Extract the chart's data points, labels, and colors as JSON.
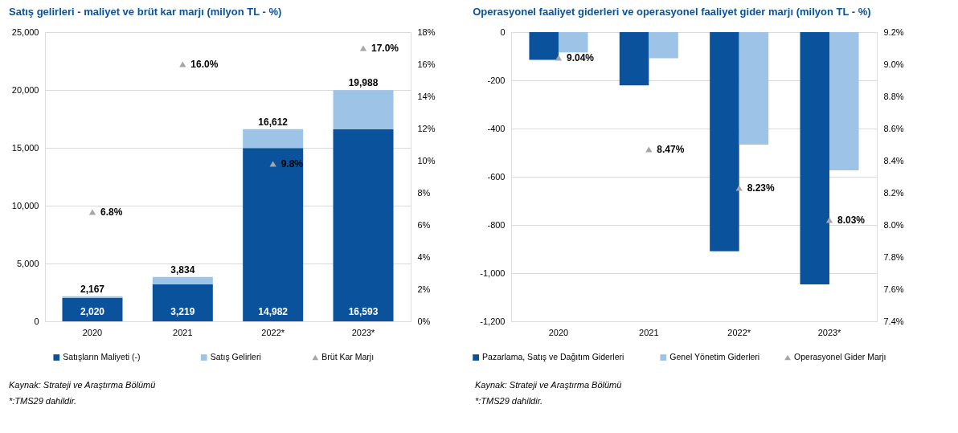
{
  "chart_data": [
    {
      "type": "bar",
      "stacked": true,
      "title": "Satış gelirleri - maliyet ve brüt kar marjı (milyon TL - %)",
      "categories": [
        "2020",
        "2021",
        "2022*",
        "2023*"
      ],
      "series": [
        {
          "name": "Satışların Maliyeti (-)",
          "color": "#0a529c",
          "values": [
            2020,
            3219,
            14982,
            16593
          ],
          "value_labels": [
            "2,020",
            "3,219",
            "14,982",
            "16,593"
          ]
        },
        {
          "name": "Satış Gelirleri",
          "color": "#9dc3e6",
          "values": [
            147,
            615,
            1630,
            3395
          ]
        },
        {
          "name": "Brüt Kar Marjı",
          "type": "scatter",
          "axis": "y2",
          "color": "#a6a6a6",
          "values": [
            6.8,
            16.0,
            9.8,
            17.0
          ],
          "value_labels": [
            "6.8%",
            "16.0%",
            "9.8%",
            "17.0%"
          ]
        }
      ],
      "totals": [
        "2,167",
        "3,834",
        "16,612",
        "19,988"
      ],
      "ylim": [
        0,
        25000
      ],
      "yticks": [
        0,
        {
          "value": 5000,
          "label": "5,000"
        },
        {
          "value": 10000,
          "label": "10,000"
        },
        {
          "value": 15000,
          "label": "15,000"
        },
        {
          "value": 20000,
          "label": "20,000"
        },
        {
          "value": 25000,
          "label": "25,000"
        }
      ],
      "y2lim": [
        0,
        18
      ],
      "y2ticks": [
        {
          "value": 0,
          "label": "0%"
        },
        {
          "value": 2,
          "label": "2%"
        },
        {
          "value": 4,
          "label": "4%"
        },
        {
          "value": 6,
          "label": "6%"
        },
        {
          "value": 8,
          "label": "8%"
        },
        {
          "value": 10,
          "label": "10%"
        },
        {
          "value": 12,
          "label": "12%"
        },
        {
          "value": 14,
          "label": "14%"
        },
        {
          "value": 16,
          "label": "16%"
        },
        {
          "value": 18,
          "label": "18%"
        }
      ],
      "grid": "y",
      "legend": "bottom",
      "marker": "triangle",
      "annotations": [
        "Kaynak: Strateji ve Araştırma Bölümü",
        "*:TMS29 dahildir."
      ]
    },
    {
      "type": "bar",
      "title": "Operasyonel faaliyet giderleri ve operasyonel faaliyet gider marjı (milyon TL - %)",
      "categories": [
        "2020",
        "2021",
        "2022*",
        "2023*"
      ],
      "series": [
        {
          "name": "Pazarlama, Satış ve Dağıtım Giderleri",
          "color": "#0a529c",
          "values": [
            -115,
            -221,
            -909,
            -1047
          ]
        },
        {
          "name": "Genel Yönetim Giderleri",
          "color": "#9dc3e6",
          "values": [
            -84,
            -108,
            -467,
            -573
          ]
        },
        {
          "name": "Operasyonel Gider Marjı",
          "type": "scatter",
          "axis": "y2",
          "color": "#a6a6a6",
          "values": [
            9.04,
            8.47,
            8.23,
            8.03
          ],
          "value_labels": [
            "9.04%",
            "8.47%",
            "8.23%",
            "8.03%"
          ]
        }
      ],
      "ylim": [
        -1200,
        0
      ],
      "yticks": [
        {
          "value": -1200,
          "label": "-1,200"
        },
        {
          "value": -1000,
          "label": "-1,000"
        },
        -800,
        -600,
        -400,
        -200,
        0
      ],
      "y2lim": [
        7.4,
        9.2
      ],
      "y2ticks": [
        {
          "value": 7.4,
          "label": "7.4%"
        },
        {
          "value": 7.6,
          "label": "7.6%"
        },
        {
          "value": 7.8,
          "label": "7.8%"
        },
        {
          "value": 8.0,
          "label": "8.0%"
        },
        {
          "value": 8.2,
          "label": "8.2%"
        },
        {
          "value": 8.4,
          "label": "8.4%"
        },
        {
          "value": 8.6,
          "label": "8.6%"
        },
        {
          "value": 8.8,
          "label": "8.8%"
        },
        {
          "value": 9.0,
          "label": "9.0%"
        },
        {
          "value": 9.2,
          "label": "9.2%"
        }
      ],
      "grid": "y",
      "legend": "bottom",
      "marker": "triangle",
      "annotations": [
        "Kaynak: Strateji ve Araştırma Bölümü",
        "*:TMS29 dahildir."
      ]
    }
  ]
}
